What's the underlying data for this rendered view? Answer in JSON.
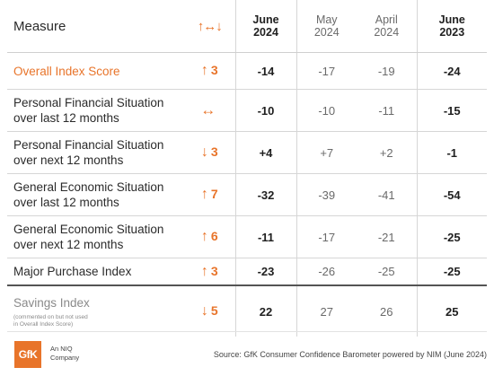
{
  "header": {
    "measure": "Measure",
    "change_icon": "↑↔↓",
    "columns": [
      {
        "line1": "June",
        "line2": "2024"
      },
      {
        "line1": "May",
        "line2": "2024"
      },
      {
        "line1": "April",
        "line2": "2024"
      },
      {
        "line1": "June",
        "line2": "2023"
      }
    ]
  },
  "rows": [
    {
      "measure": "Overall Index Score",
      "arrow": "↑",
      "change": "3",
      "june2024": "-14",
      "may2024": "-17",
      "april2024": "-19",
      "june2023": "-24"
    },
    {
      "measure_l1": "Personal Financial Situation",
      "measure_l2": "over last 12 months",
      "arrow": "↔",
      "change": "",
      "june2024": "-10",
      "may2024": "-10",
      "april2024": "-11",
      "june2023": "-15"
    },
    {
      "measure_l1": "Personal Financial Situation",
      "measure_l2": "over next 12 months",
      "arrow": "↓",
      "change": "3",
      "june2024": "+4",
      "may2024": "+7",
      "april2024": "+2",
      "june2023": "-1"
    },
    {
      "measure_l1": "General Economic Situation",
      "measure_l2": "over last 12 months",
      "arrow": "↑",
      "change": "7",
      "june2024": "-32",
      "may2024": "-39",
      "april2024": "-41",
      "june2023": "-54"
    },
    {
      "measure_l1": "General Economic Situation",
      "measure_l2": "over next 12 months",
      "arrow": "↑",
      "change": "6",
      "june2024": "-11",
      "may2024": "-17",
      "april2024": "-21",
      "june2023": "-25"
    },
    {
      "measure": "Major Purchase Index",
      "arrow": "↑",
      "change": "3",
      "june2024": "-23",
      "may2024": "-26",
      "april2024": "-25",
      "june2023": "-25"
    },
    {
      "measure": "Savings Index",
      "note_l1": "(commented on but not used",
      "note_l2": "in Overall Index Score)",
      "arrow": "↓",
      "change": "5",
      "june2024": "22",
      "may2024": "27",
      "april2024": "26",
      "june2023": "25"
    }
  ],
  "footer": {
    "logo": "GfK",
    "company_l1": "An NIQ",
    "company_l2": "Company",
    "source": "Source: GfK Consumer Confidence Barometer powered by NIM (June 2024)"
  },
  "colors": {
    "accent": "#e8742a",
    "text": "#2b2b2b",
    "muted": "#8a8a8a"
  }
}
